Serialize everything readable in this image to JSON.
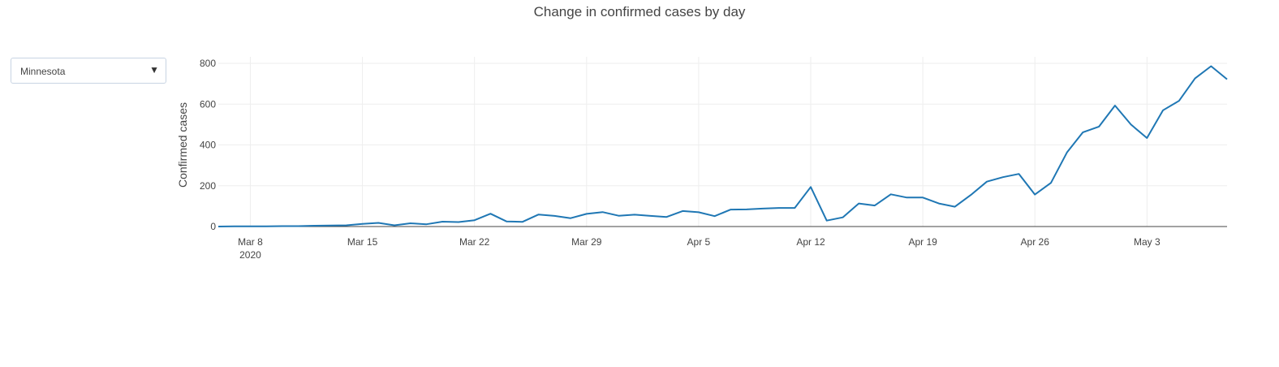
{
  "title": "Change in confirmed cases by day",
  "dropdown": {
    "value": "Minnesota",
    "caret": "▼"
  },
  "colors": {
    "line": "#1f77b4",
    "grid": "#eeeeee",
    "axis": "#444444"
  },
  "chart_data": {
    "type": "line",
    "title": "Change in confirmed cases by day",
    "xlabel": "",
    "ylabel": "Confirmed cases",
    "ylim": [
      0,
      800
    ],
    "xlim": [
      "2020-03-06",
      "2020-05-07"
    ],
    "grid": true,
    "xticks": [
      {
        "date": "2020-03-08",
        "label": "Mar 8",
        "sublabel": "2020"
      },
      {
        "date": "2020-03-15",
        "label": "Mar 15"
      },
      {
        "date": "2020-03-22",
        "label": "Mar 22"
      },
      {
        "date": "2020-03-29",
        "label": "Mar 29"
      },
      {
        "date": "2020-04-05",
        "label": "Apr 5"
      },
      {
        "date": "2020-04-12",
        "label": "Apr 12"
      },
      {
        "date": "2020-04-19",
        "label": "Apr 19"
      },
      {
        "date": "2020-04-26",
        "label": "Apr 26"
      },
      {
        "date": "2020-05-03",
        "label": "May 3"
      }
    ],
    "yticks": [
      0,
      200,
      400,
      600,
      800
    ],
    "series": [
      {
        "x": [
          "2020-03-06",
          "2020-03-07",
          "2020-03-08",
          "2020-03-09",
          "2020-03-10",
          "2020-03-11",
          "2020-03-12",
          "2020-03-13",
          "2020-03-14",
          "2020-03-15",
          "2020-03-16",
          "2020-03-17",
          "2020-03-18",
          "2020-03-19",
          "2020-03-20",
          "2020-03-21",
          "2020-03-22",
          "2020-03-23",
          "2020-03-24",
          "2020-03-25",
          "2020-03-26",
          "2020-03-27",
          "2020-03-28",
          "2020-03-29",
          "2020-03-30",
          "2020-03-31",
          "2020-04-01",
          "2020-04-02",
          "2020-04-03",
          "2020-04-04",
          "2020-04-05",
          "2020-04-06",
          "2020-04-07",
          "2020-04-08",
          "2020-04-09",
          "2020-04-10",
          "2020-04-11",
          "2020-04-12",
          "2020-04-13",
          "2020-04-14",
          "2020-04-15",
          "2020-04-16",
          "2020-04-17",
          "2020-04-18",
          "2020-04-19",
          "2020-04-20",
          "2020-04-21",
          "2020-04-22",
          "2020-04-23",
          "2020-04-24",
          "2020-04-25",
          "2020-04-26",
          "2020-04-27",
          "2020-04-28",
          "2020-04-29",
          "2020-04-30",
          "2020-05-01",
          "2020-05-02",
          "2020-05-03",
          "2020-05-04",
          "2020-05-05",
          "2020-05-06",
          "2020-05-07"
        ],
        "y": [
          0,
          1,
          1,
          1,
          2,
          2,
          4,
          5,
          6,
          13,
          18,
          6,
          16,
          11,
          24,
          22,
          31,
          63,
          25,
          23,
          59,
          52,
          41,
          62,
          71,
          53,
          58,
          52,
          47,
          76,
          70,
          51,
          83,
          84,
          88,
          91,
          91,
          194,
          29,
          45,
          113,
          103,
          158,
          142,
          142,
          113,
          97,
          155,
          220,
          242,
          258,
          157,
          214,
          363,
          462,
          490,
          593,
          500,
          434,
          570,
          616,
          726,
          786
        ]
      },
      {
        "x": [
          "2020-05-08"
        ],
        "y": [
          722
        ]
      }
    ]
  }
}
